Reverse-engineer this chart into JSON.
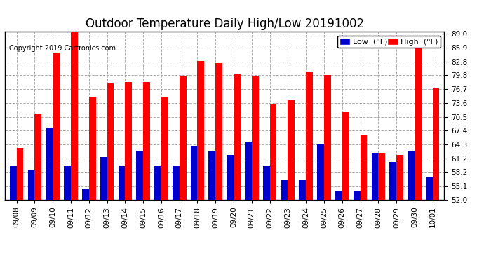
{
  "title": "Outdoor Temperature Daily High/Low 20191002",
  "copyright": "Copyright 2019 Cartronics.com",
  "legend_low": "Low  (°F)",
  "legend_high": "High  (°F)",
  "categories": [
    "09/08",
    "09/09",
    "09/10",
    "09/11",
    "09/12",
    "09/13",
    "09/14",
    "09/15",
    "09/16",
    "09/17",
    "09/18",
    "09/19",
    "09/20",
    "09/21",
    "09/22",
    "09/23",
    "09/24",
    "09/25",
    "09/26",
    "09/27",
    "09/28",
    "09/29",
    "09/30",
    "10/01"
  ],
  "high": [
    63.5,
    71.0,
    84.8,
    89.5,
    75.0,
    78.0,
    78.2,
    78.2,
    75.0,
    79.5,
    83.0,
    82.5,
    80.0,
    79.5,
    73.4,
    74.2,
    80.5,
    79.8,
    71.5,
    66.5,
    62.5,
    62.0,
    87.5,
    76.8
  ],
  "low": [
    59.5,
    58.5,
    68.0,
    59.5,
    54.5,
    61.5,
    59.5,
    63.0,
    59.5,
    59.5,
    64.0,
    63.0,
    62.0,
    65.0,
    59.5,
    56.5,
    56.5,
    64.5,
    54.0,
    54.0,
    62.5,
    60.5,
    63.0,
    57.2
  ],
  "ymin": 52.0,
  "ymax": 89.5,
  "yticks": [
    52.0,
    55.1,
    58.2,
    61.2,
    64.3,
    67.4,
    70.5,
    73.6,
    76.7,
    79.8,
    82.8,
    85.9,
    89.0
  ],
  "bar_width": 0.38,
  "high_color": "#ff0000",
  "low_color": "#0000cc",
  "bg_color": "#ffffff",
  "grid_color": "#aaaaaa",
  "title_fontsize": 12,
  "tick_fontsize": 7.5,
  "copyright_fontsize": 7,
  "legend_fontsize": 8
}
